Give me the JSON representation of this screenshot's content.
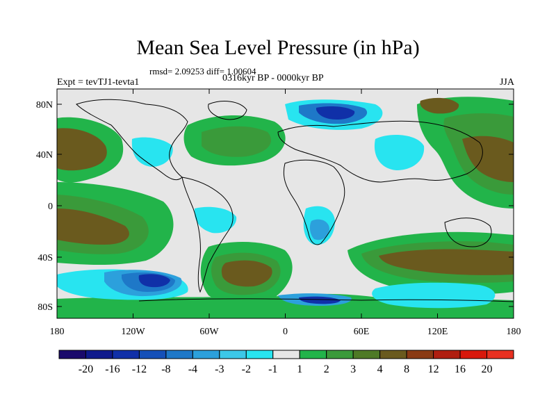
{
  "title": "Mean Sea Level Pressure (in hPa)",
  "stats": "rmsd= 2.09253 diff= 1.00604",
  "experiment": "Expt = tevTJ1-tevta1",
  "period": "0316kyr BP - 0000kyr BP",
  "season": "JJA",
  "axes": {
    "lat_ticks": [
      "80N",
      "40N",
      "0",
      "40S",
      "80S"
    ],
    "lon_ticks": [
      "180",
      "120W",
      "60W",
      "0",
      "60E",
      "120E",
      "180"
    ]
  },
  "colorbar": {
    "labels": [
      "-20",
      "-16",
      "-12",
      "-8",
      "-4",
      "-3",
      "-2",
      "-1",
      "1",
      "2",
      "3",
      "4",
      "8",
      "12",
      "16",
      "20"
    ],
    "colors": [
      "#1a0a6b",
      "#0f1a8c",
      "#1030a8",
      "#1550b8",
      "#1e78c8",
      "#2ca0dc",
      "#3cc8e8",
      "#28e4f0",
      "#e6e6e6",
      "#22b44a",
      "#3a9a3a",
      "#4e7a26",
      "#6a5a1e",
      "#8a3a14",
      "#b01e10",
      "#d8180c",
      "#e83020"
    ]
  },
  "map_colors": {
    "ocean_neutral": "#e6e6e6",
    "pos_1_2": "#22b44a",
    "pos_2_3": "#3a9a3a",
    "pos_3_4": "#4e7a26",
    "pos_4_8": "#6a5a1e",
    "neg_1_2": "#28e4f0",
    "neg_2_3": "#3cc8e8",
    "neg_3_4": "#2ca0dc",
    "neg_4_8": "#1e78c8",
    "neg_8_12": "#1550b8",
    "neg_12_16": "#1030a8"
  }
}
